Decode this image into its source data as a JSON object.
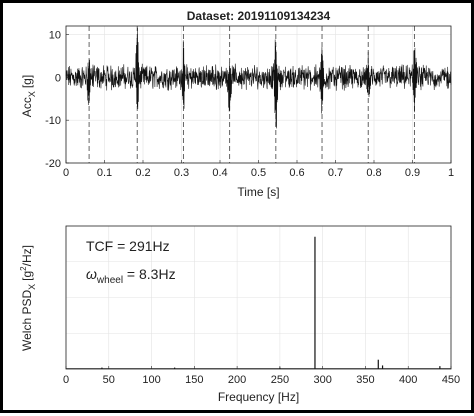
{
  "chart_data": [
    {
      "type": "line",
      "title": "Dataset: 20191109134234",
      "xlabel": "Time [s]",
      "ylabel_main": "Acc",
      "ylabel_sub": "X",
      "ylabel_unit": "[g]",
      "xlim": [
        0,
        1
      ],
      "ylim": [
        -20,
        12
      ],
      "xticks": [
        "0",
        "0.1",
        "0.2",
        "0.3",
        "0.4",
        "0.5",
        "0.6",
        "0.7",
        "0.8",
        "0.9",
        "1"
      ],
      "yticks": [
        "10",
        "0",
        "-10",
        "-20"
      ],
      "grid": true,
      "signal": {
        "sample_count": 1400,
        "noise_amplitude_g": 2.2,
        "impulse_times_s": [
          0.06,
          0.185,
          0.305,
          0.425,
          0.545,
          0.665,
          0.785,
          0.905
        ],
        "impulse_peaks_g": [
          [
            4.5,
            -7
          ],
          [
            10.5,
            -9
          ],
          [
            6,
            -9
          ],
          [
            5,
            -11
          ],
          [
            10,
            -14.5
          ],
          [
            6,
            -8
          ],
          [
            5,
            -7
          ],
          [
            8.5,
            -8
          ]
        ]
      },
      "dashed_markers_x": [
        0.06,
        0.185,
        0.305,
        0.425,
        0.545,
        0.665,
        0.785,
        0.905
      ]
    },
    {
      "type": "line",
      "xlabel": "Frequency [Hz]",
      "ylabel_main": "Welch PSD",
      "ylabel_sub": "X",
      "ylabel_unit": "[g",
      "ylabel_sup": "2",
      "ylabel_unit_end": "/Hz]",
      "xlim": [
        0,
        450
      ],
      "ylim": [
        0,
        2
      ],
      "xticks": [
        "0",
        "50",
        "100",
        "150",
        "200",
        "250",
        "300",
        "350",
        "400",
        "450"
      ],
      "grid": true,
      "annotations": {
        "tcf": "TCF = 291Hz",
        "omega_symbol": "ω",
        "omega_sub": "wheel",
        "omega_value": " = 8.3Hz"
      },
      "peaks": [
        {
          "f": 291,
          "value": 1.85
        },
        {
          "f": 365,
          "value": 0.13
        },
        {
          "f": 370,
          "value": 0.05
        },
        {
          "f": 437,
          "value": 0.04
        },
        {
          "f": 42,
          "value": 0.02
        },
        {
          "f": 127,
          "value": 0.02
        },
        {
          "f": 250,
          "value": 0.02
        }
      ]
    }
  ]
}
